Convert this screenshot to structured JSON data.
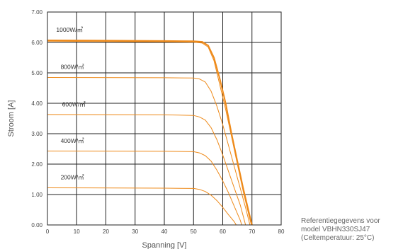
{
  "chart_data": {
    "type": "line",
    "title": "",
    "xlabel": "Spanning [V]",
    "ylabel": "Stroom [A]",
    "xlim": [
      0,
      80
    ],
    "ylim": [
      0,
      7
    ],
    "x_ticks": [
      "0",
      "10",
      "20",
      "30",
      "40",
      "50",
      "60",
      "70",
      "80"
    ],
    "y_ticks": [
      "0.00",
      "1.00",
      "2.00",
      "3.00",
      "4.00",
      "5.00",
      "6.00",
      "7.00"
    ],
    "grid": true,
    "series": [
      {
        "name": "1000W/㎡",
        "color": "#ee8a1a",
        "width": 2.0,
        "points": [
          [
            0,
            6.07
          ],
          [
            20,
            6.06
          ],
          [
            40,
            6.05
          ],
          [
            50,
            6.04
          ],
          [
            53,
            6.02
          ],
          [
            55,
            5.9
          ],
          [
            57,
            5.5
          ],
          [
            59,
            4.8
          ],
          [
            61,
            4.0
          ],
          [
            63,
            3.0
          ],
          [
            65,
            2.1
          ],
          [
            67,
            1.2
          ],
          [
            69,
            0.4
          ],
          [
            70,
            0.0
          ]
        ]
      },
      {
        "name": "",
        "color": "#ee8a1a",
        "width": 1.0,
        "points": [
          [
            0,
            6.04
          ],
          [
            20,
            6.03
          ],
          [
            40,
            6.02
          ],
          [
            50,
            6.01
          ],
          [
            53,
            5.98
          ],
          [
            55,
            5.85
          ],
          [
            57,
            5.4
          ],
          [
            59,
            4.6
          ],
          [
            61,
            3.8
          ],
          [
            63,
            2.9
          ],
          [
            65,
            2.0
          ],
          [
            67,
            1.1
          ],
          [
            69,
            0.3
          ],
          [
            69.8,
            0.0
          ]
        ]
      },
      {
        "name": "800W/㎡",
        "color": "#ee8a1a",
        "width": 1.0,
        "points": [
          [
            0,
            4.85
          ],
          [
            40,
            4.84
          ],
          [
            50,
            4.83
          ],
          [
            52,
            4.8
          ],
          [
            54,
            4.7
          ],
          [
            56,
            4.4
          ],
          [
            58,
            3.9
          ],
          [
            60,
            3.3
          ],
          [
            62,
            2.6
          ],
          [
            64,
            1.9
          ],
          [
            66,
            1.2
          ],
          [
            68,
            0.5
          ],
          [
            69.3,
            0.0
          ]
        ]
      },
      {
        "name": "600W/㎡",
        "color": "#ee8a1a",
        "width": 1.0,
        "points": [
          [
            0,
            3.63
          ],
          [
            40,
            3.62
          ],
          [
            50,
            3.6
          ],
          [
            52,
            3.55
          ],
          [
            54,
            3.45
          ],
          [
            56,
            3.2
          ],
          [
            58,
            2.8
          ],
          [
            60,
            2.3
          ],
          [
            62,
            1.75
          ],
          [
            64,
            1.2
          ],
          [
            66,
            0.65
          ],
          [
            67.8,
            0.0
          ]
        ]
      },
      {
        "name": "400W/㎡",
        "color": "#ee8a1a",
        "width": 1.0,
        "points": [
          [
            0,
            2.43
          ],
          [
            40,
            2.42
          ],
          [
            50,
            2.41
          ],
          [
            52,
            2.37
          ],
          [
            54,
            2.28
          ],
          [
            56,
            2.1
          ],
          [
            58,
            1.8
          ],
          [
            60,
            1.45
          ],
          [
            62,
            1.05
          ],
          [
            64,
            0.6
          ],
          [
            66,
            0.15
          ],
          [
            66.5,
            0.0
          ]
        ]
      },
      {
        "name": "200W/㎡",
        "color": "#ee8a1a",
        "width": 1.0,
        "points": [
          [
            0,
            1.22
          ],
          [
            40,
            1.21
          ],
          [
            50,
            1.2
          ],
          [
            52,
            1.17
          ],
          [
            54,
            1.1
          ],
          [
            56,
            0.98
          ],
          [
            58,
            0.8
          ],
          [
            60,
            0.58
          ],
          [
            62,
            0.33
          ],
          [
            64,
            0.1
          ],
          [
            64.6,
            0.0
          ]
        ]
      }
    ],
    "curve_labels": [
      {
        "text": "1000W/㎡",
        "x": 3,
        "y": 6.35
      },
      {
        "text": "800W/㎡",
        "x": 4.5,
        "y": 5.13
      },
      {
        "text": "600W/㎡",
        "x": 5,
        "y": 3.9
      },
      {
        "text": "400W/㎡",
        "x": 4.5,
        "y": 2.7
      },
      {
        "text": "200W/㎡",
        "x": 4.5,
        "y": 1.5
      }
    ]
  },
  "note": {
    "line1": "Referentiegegevens voor",
    "line2": "model  VBHN330SJ47",
    "line3": "(Celtemperatuur: 25°C)"
  }
}
